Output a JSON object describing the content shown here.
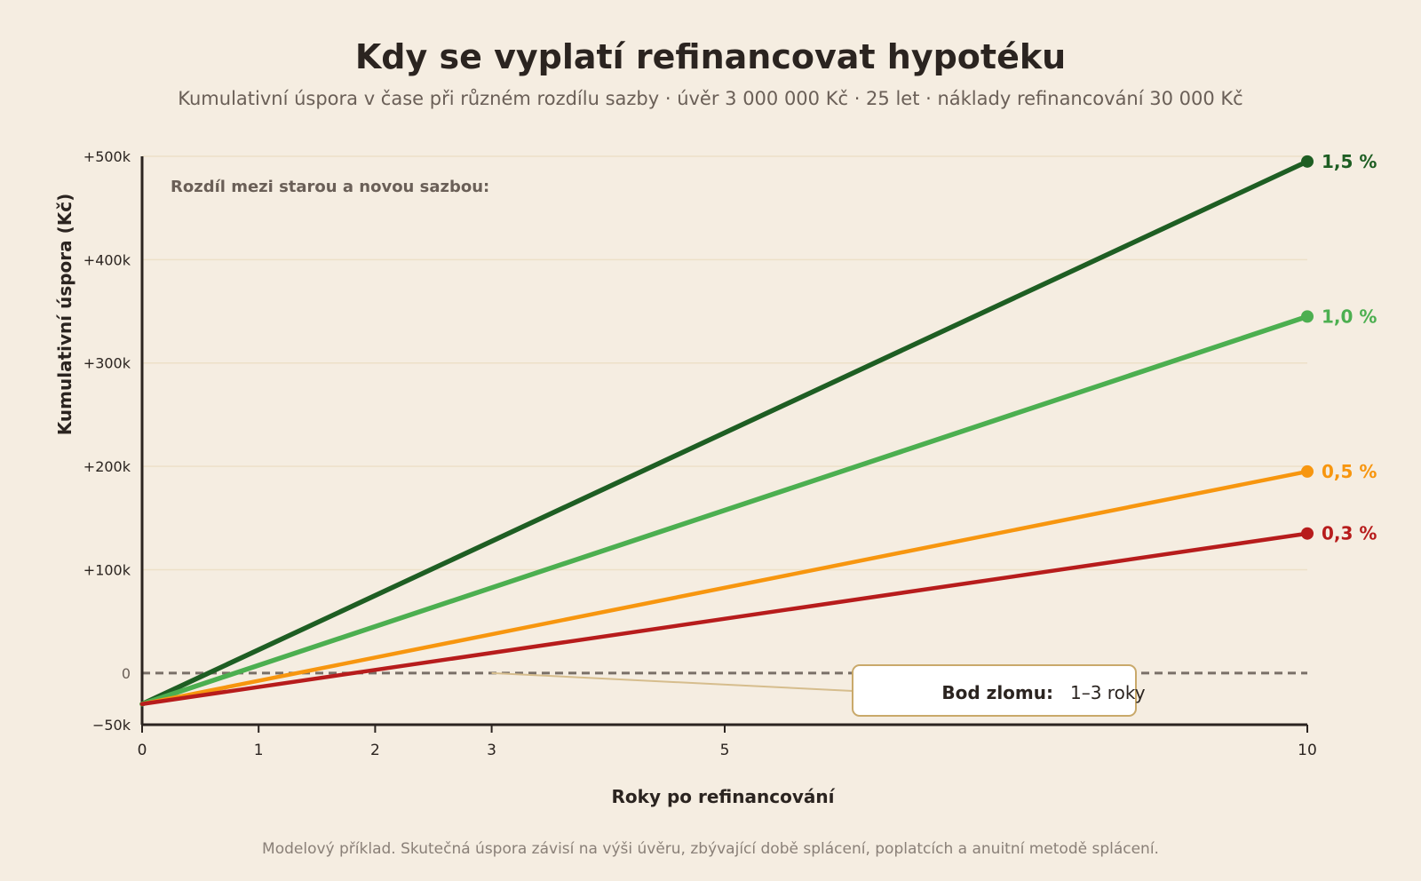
{
  "page": {
    "title": "Kdy se vyplatí refinancovat hypotéku",
    "subtitle": "Kumulativní úspora v čase při různém rozdílu sazby · úvěr 3 000 000 Kč · 25 let · náklady refinancování 30 000 Kč",
    "footnote": "Modelový příklad. Skutečná úspora závisí na výši úvěru, zbývající době splácení, poplatcích a anuitní metodě splácení."
  },
  "colors": {
    "background": "#f5ede1",
    "grid": "#ede0c8",
    "axis": "#2b2420",
    "zero_line": "#7a7068",
    "callout_border": "#c9a96a",
    "callout_line": "#d6bd8d"
  },
  "chart_data": {
    "type": "line",
    "title": "Kdy se vyplatí refinancovat hypotéku",
    "xlabel": "Roky po refinancování",
    "ylabel": "Kumulativní úspora (Kč)",
    "xlim": [
      0,
      10
    ],
    "ylim": [
      -50000,
      500000
    ],
    "x_ticks": [
      {
        "value": 0,
        "label": "0"
      },
      {
        "value": 1,
        "label": "1"
      },
      {
        "value": 2,
        "label": "2"
      },
      {
        "value": 3,
        "label": "3"
      },
      {
        "value": 5,
        "label": "5"
      },
      {
        "value": 10,
        "label": "10"
      }
    ],
    "y_ticks": [
      {
        "value": -50000,
        "label": "−50k"
      },
      {
        "value": 0,
        "label": "0"
      },
      {
        "value": 100000,
        "label": "+100k"
      },
      {
        "value": 200000,
        "label": "+200k"
      },
      {
        "value": 300000,
        "label": "+300k"
      },
      {
        "value": 400000,
        "label": "+400k"
      },
      {
        "value": 500000,
        "label": "+500k"
      }
    ],
    "grid": true,
    "zero_line": "dashed",
    "legend_title": "Rozdíl mezi starou a novou sazbou:",
    "series": [
      {
        "name": "1,5 %",
        "color": "#1e5e23",
        "stroke_weight": "heavy",
        "x": [
          0,
          10
        ],
        "y": [
          -30000,
          495000
        ]
      },
      {
        "name": "1,0 %",
        "color": "#4caf50",
        "stroke_weight": "heavy",
        "x": [
          0,
          10
        ],
        "y": [
          -30000,
          345000
        ]
      },
      {
        "name": "0,5 %",
        "color": "#f7960f",
        "stroke_weight": "medium",
        "x": [
          0,
          10
        ],
        "y": [
          -30000,
          195000
        ]
      },
      {
        "name": "0,3 %",
        "color": "#b71c1c",
        "stroke_weight": "medium",
        "x": [
          0,
          10
        ],
        "y": [
          -30000,
          135000
        ]
      }
    ],
    "annotation": {
      "bold": "Bod zlomu:",
      "text": "1–3 roky",
      "points_to_x": 3,
      "points_to_y": 0
    }
  }
}
